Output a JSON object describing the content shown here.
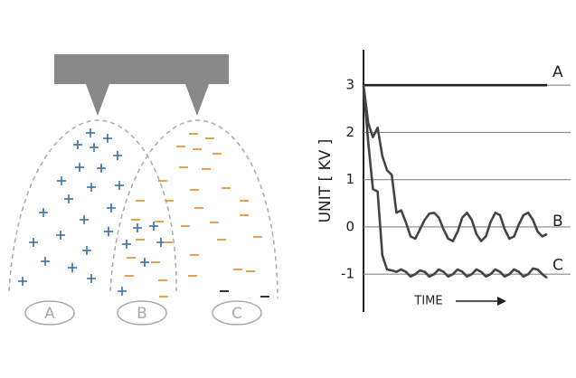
{
  "diagram": {
    "labels": [
      "A",
      "B",
      "C"
    ]
  },
  "chart_data": {
    "type": "line",
    "y_label": "UNIT [ KV ]",
    "x_label": "TIME",
    "x": [
      0,
      1,
      2,
      3,
      4,
      5,
      6,
      7,
      8,
      9,
      10,
      11,
      12,
      13,
      14,
      15,
      16,
      17,
      18,
      19,
      20,
      21,
      22,
      23,
      24,
      25,
      26,
      27,
      28,
      29,
      30,
      31,
      32,
      33,
      34,
      35,
      36,
      37,
      38,
      39
    ],
    "xlim": [
      0,
      44
    ],
    "ylim": [
      -1.8,
      3.75
    ],
    "yticks": [
      3,
      2,
      1,
      0,
      -1
    ],
    "grid": true,
    "series": [
      {
        "name": "A",
        "color": "#222222",
        "values": [
          3,
          3,
          3,
          3,
          3,
          3,
          3,
          3,
          3,
          3,
          3,
          3,
          3,
          3,
          3,
          3,
          3,
          3,
          3,
          3,
          3,
          3,
          3,
          3,
          3,
          3,
          3,
          3,
          3,
          3,
          3,
          3,
          3,
          3,
          3,
          3,
          3,
          3,
          3,
          3
        ]
      },
      {
        "name": "B",
        "color": "#444444",
        "values": [
          3,
          2.2,
          1.9,
          2.1,
          1.5,
          1.2,
          1.1,
          0.3,
          0.35,
          0.1,
          -0.2,
          -0.25,
          -0.05,
          0.15,
          0.28,
          0.3,
          0.2,
          -0.05,
          -0.25,
          -0.3,
          -0.1,
          0.2,
          0.3,
          0.15,
          -0.15,
          -0.3,
          -0.2,
          0.1,
          0.3,
          0.25,
          -0.05,
          -0.25,
          -0.2,
          0.05,
          0.25,
          0.3,
          0.15,
          -0.1,
          -0.2,
          -0.15
        ]
      },
      {
        "name": "C",
        "color": "#444444",
        "values": [
          3,
          1.8,
          0.8,
          0.75,
          -0.6,
          -0.9,
          -0.92,
          -0.95,
          -0.9,
          -0.95,
          -1.05,
          -1.0,
          -0.92,
          -0.95,
          -1.05,
          -1.0,
          -0.9,
          -0.95,
          -1.05,
          -1.0,
          -0.9,
          -0.95,
          -1.05,
          -1.0,
          -0.9,
          -0.95,
          -1.05,
          -1.0,
          -0.9,
          -0.95,
          -1.05,
          -1.0,
          -0.9,
          -0.95,
          -1.05,
          -1.0,
          -0.88,
          -0.9,
          -1.0,
          -1.08
        ]
      }
    ]
  }
}
